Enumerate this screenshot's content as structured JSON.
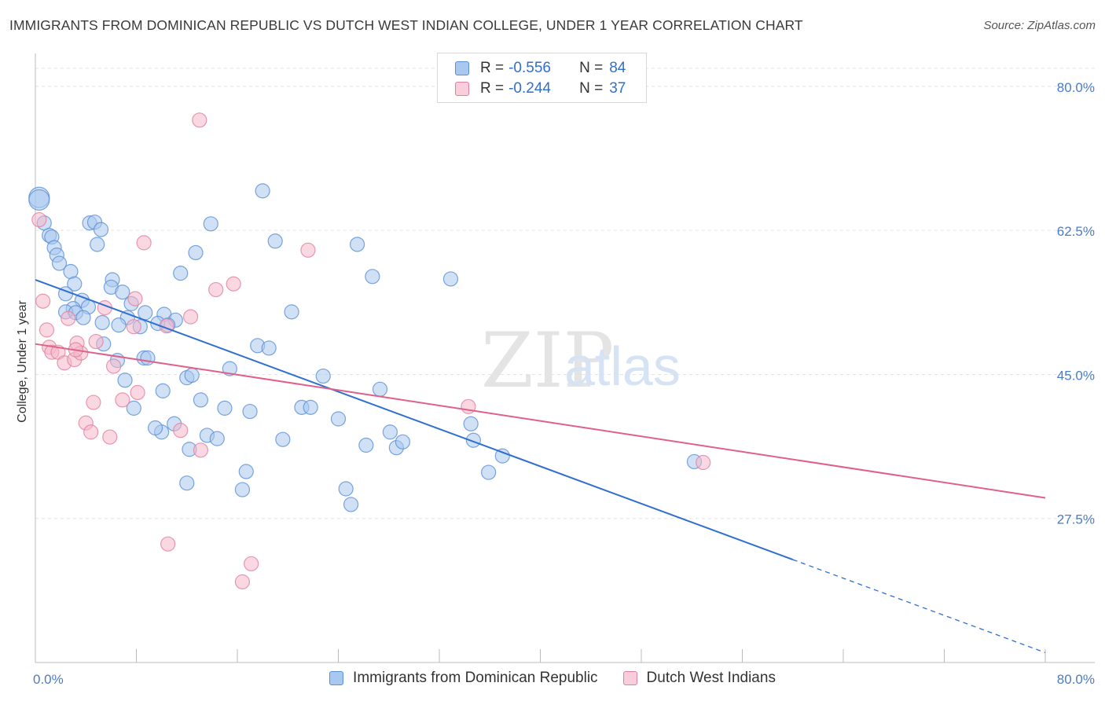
{
  "title": "IMMIGRANTS FROM DOMINICAN REPUBLIC VS DUTCH WEST INDIAN COLLEGE, UNDER 1 YEAR CORRELATION CHART",
  "source": "Source: ZipAtlas.com",
  "watermark": {
    "zip": "ZIP",
    "atlas": "atlas"
  },
  "colors": {
    "blue_fill": "#a9c8ef",
    "blue_stroke": "#5b8fd6",
    "blue_line": "#2f6fd0",
    "pink_fill": "#f4b8ca",
    "pink_stroke": "#e27fa0",
    "pink_line": "#e0608a",
    "tick_label": "#4a7cc7",
    "grid": "#e3e3e3"
  },
  "legend": {
    "rows": [
      {
        "r_label": "R =",
        "r_value": "-0.556",
        "n_label": "N =",
        "n_value": "84"
      },
      {
        "r_label": "R =",
        "r_value": "-0.244",
        "n_label": "N =",
        "n_value": "37"
      }
    ]
  },
  "bottom_legend": [
    "Immigrants from Dominican Republic",
    "Dutch West Indians"
  ],
  "chart_data": {
    "type": "scatter",
    "xlabel": "",
    "ylabel": "College, Under 1 year",
    "xlim": [
      0,
      80
    ],
    "ylim": [
      10,
      84
    ],
    "x_tick_labels": [
      "0.0%",
      "80.0%"
    ],
    "y_ticks": [
      27.5,
      45.0,
      62.5,
      80.0
    ],
    "y_tick_labels": [
      "27.5%",
      "45.0%",
      "62.5%",
      "80.0%"
    ],
    "grid": "horizontal dashed",
    "legend_placement": "top-center",
    "series": [
      {
        "name": "Immigrants from Dominican Republic",
        "R": -0.556,
        "N": 84,
        "trend": {
          "x0": 0,
          "y0": 56.5,
          "x1": 60,
          "y1": 22.5,
          "dashed_to_x": 80,
          "dashed_to_y": 11.2
        },
        "points": [
          [
            0.3,
            66.5
          ],
          [
            0.3,
            66.2
          ],
          [
            0.7,
            63.4
          ],
          [
            1.1,
            61.9
          ],
          [
            1.3,
            61.7
          ],
          [
            1.5,
            60.4
          ],
          [
            1.7,
            59.5
          ],
          [
            1.9,
            58.5
          ],
          [
            2.8,
            57.5
          ],
          [
            3.1,
            56.0
          ],
          [
            2.4,
            54.8
          ],
          [
            3.7,
            54.0
          ],
          [
            4.2,
            53.2
          ],
          [
            3.0,
            53.0
          ],
          [
            2.4,
            52.6
          ],
          [
            3.2,
            52.5
          ],
          [
            3.8,
            51.9
          ],
          [
            4.3,
            63.4
          ],
          [
            4.7,
            63.5
          ],
          [
            5.2,
            62.6
          ],
          [
            4.9,
            60.8
          ],
          [
            6.1,
            56.5
          ],
          [
            6.0,
            55.6
          ],
          [
            6.9,
            55.0
          ],
          [
            7.6,
            53.6
          ],
          [
            8.7,
            52.5
          ],
          [
            7.3,
            51.9
          ],
          [
            10.2,
            52.3
          ],
          [
            11.1,
            51.6
          ],
          [
            9.7,
            51.2
          ],
          [
            10.5,
            51.0
          ],
          [
            5.3,
            51.3
          ],
          [
            6.6,
            51.0
          ],
          [
            8.3,
            50.8
          ],
          [
            5.4,
            48.7
          ],
          [
            6.5,
            46.7
          ],
          [
            8.6,
            47.0
          ],
          [
            8.9,
            47.0
          ],
          [
            7.1,
            44.3
          ],
          [
            10.1,
            43.0
          ],
          [
            7.8,
            40.9
          ],
          [
            12.0,
            44.6
          ],
          [
            12.4,
            44.9
          ],
          [
            13.1,
            41.9
          ],
          [
            12.7,
            59.8
          ],
          [
            11.5,
            57.3
          ],
          [
            13.9,
            63.3
          ],
          [
            11.0,
            39.0
          ],
          [
            10.0,
            38.0
          ],
          [
            9.5,
            38.5
          ],
          [
            13.6,
            37.6
          ],
          [
            14.4,
            37.2
          ],
          [
            15.0,
            40.9
          ],
          [
            15.4,
            45.7
          ],
          [
            12.2,
            35.9
          ],
          [
            17.0,
            40.5
          ],
          [
            16.7,
            33.2
          ],
          [
            16.4,
            31.0
          ],
          [
            12.0,
            31.8
          ],
          [
            17.6,
            48.5
          ],
          [
            18.5,
            48.2
          ],
          [
            19.0,
            61.2
          ],
          [
            20.3,
            52.6
          ],
          [
            19.6,
            37.1
          ],
          [
            21.1,
            41.0
          ],
          [
            21.8,
            41.0
          ],
          [
            22.8,
            44.8
          ],
          [
            24.0,
            39.6
          ],
          [
            25.5,
            60.8
          ],
          [
            26.7,
            56.9
          ],
          [
            27.3,
            43.2
          ],
          [
            28.1,
            38.0
          ],
          [
            28.6,
            36.1
          ],
          [
            26.2,
            36.4
          ],
          [
            24.6,
            31.1
          ],
          [
            25.0,
            29.2
          ],
          [
            29.1,
            36.8
          ],
          [
            32.9,
            56.6
          ],
          [
            34.5,
            39.0
          ],
          [
            34.7,
            37.0
          ],
          [
            37.0,
            35.1
          ],
          [
            35.9,
            33.1
          ],
          [
            52.2,
            34.4
          ],
          [
            18.0,
            67.3
          ]
        ]
      },
      {
        "name": "Dutch West Indians",
        "R": -0.244,
        "N": 37,
        "trend": {
          "x0": 0,
          "y0": 48.7,
          "x1": 80,
          "y1": 30.0
        },
        "points": [
          [
            0.3,
            63.8
          ],
          [
            0.6,
            53.9
          ],
          [
            0.9,
            50.4
          ],
          [
            1.1,
            48.3
          ],
          [
            1.3,
            47.7
          ],
          [
            1.8,
            47.7
          ],
          [
            2.3,
            46.4
          ],
          [
            3.1,
            46.8
          ],
          [
            3.3,
            48.8
          ],
          [
            3.6,
            47.6
          ],
          [
            3.2,
            48.0
          ],
          [
            2.6,
            51.8
          ],
          [
            4.8,
            49.0
          ],
          [
            5.5,
            53.1
          ],
          [
            6.2,
            46.0
          ],
          [
            5.9,
            37.4
          ],
          [
            4.6,
            41.6
          ],
          [
            4.0,
            39.1
          ],
          [
            4.4,
            38.0
          ],
          [
            6.9,
            41.9
          ],
          [
            8.1,
            42.8
          ],
          [
            7.8,
            50.8
          ],
          [
            7.9,
            54.2
          ],
          [
            10.4,
            50.9
          ],
          [
            11.5,
            38.2
          ],
          [
            13.1,
            35.8
          ],
          [
            12.3,
            52.0
          ],
          [
            14.3,
            55.3
          ],
          [
            15.7,
            56.0
          ],
          [
            13.0,
            75.9
          ],
          [
            8.6,
            61.0
          ],
          [
            21.6,
            60.1
          ],
          [
            10.5,
            24.4
          ],
          [
            17.1,
            22.0
          ],
          [
            16.4,
            19.8
          ],
          [
            34.3,
            41.1
          ],
          [
            52.9,
            34.3
          ]
        ]
      }
    ]
  }
}
